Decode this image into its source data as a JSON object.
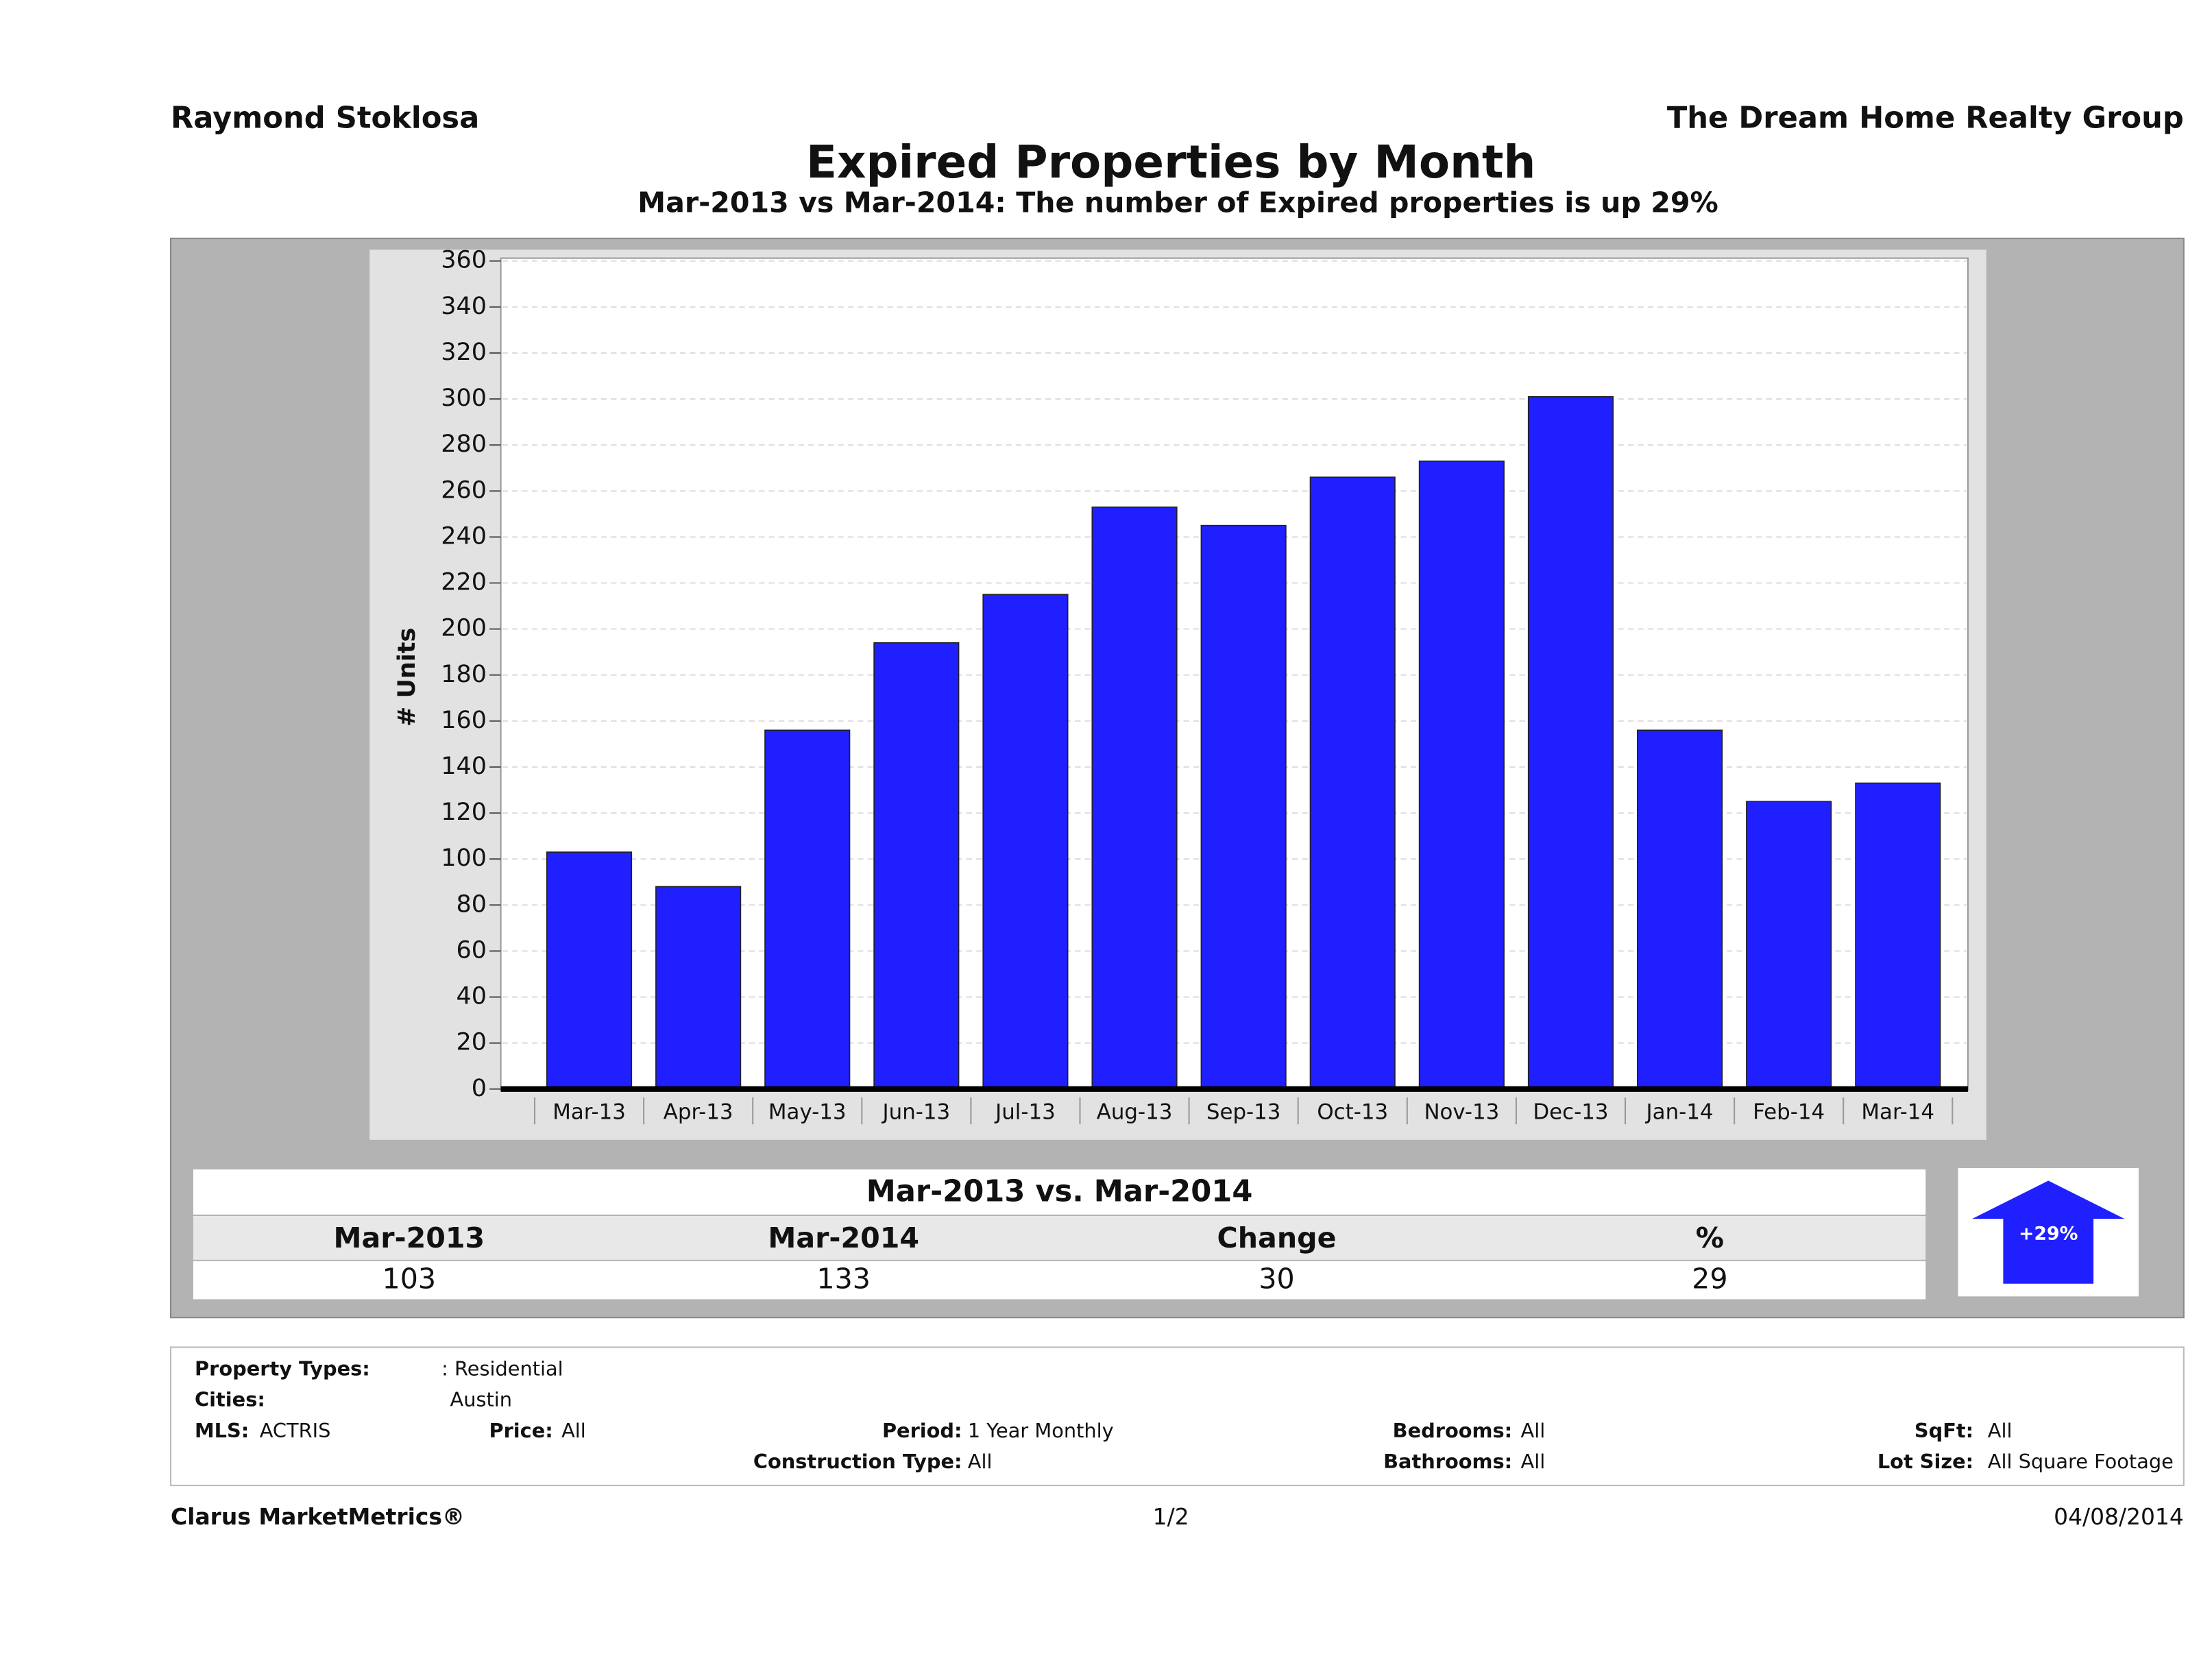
{
  "header": {
    "left": "Raymond Stoklosa",
    "right": "The Dream Home Realty Group"
  },
  "chart_data": {
    "type": "bar",
    "title": "Expired Properties by Month",
    "subtitle": "Mar-2013 vs Mar-2014: The number of Expired  properties is up 29%",
    "y_label": "# Units",
    "categories": [
      "Mar-13",
      "Apr-13",
      "May-13",
      "Jun-13",
      "Jul-13",
      "Aug-13",
      "Sep-13",
      "Oct-13",
      "Nov-13",
      "Dec-13",
      "Jan-14",
      "Feb-14",
      "Mar-14"
    ],
    "values": [
      103,
      88,
      156,
      194,
      215,
      253,
      245,
      266,
      273,
      301,
      156,
      125,
      133
    ],
    "color": "#1f1fff",
    "ylim": [
      0,
      360
    ],
    "yticks": [
      0,
      20,
      40,
      60,
      80,
      100,
      120,
      140,
      160,
      180,
      200,
      220,
      240,
      260,
      280,
      300,
      320,
      340,
      360
    ],
    "grid": true
  },
  "comparison": {
    "title": "Mar-2013 vs. Mar-2014",
    "headers": [
      "Mar-2013",
      "Mar-2014",
      "Change",
      "%"
    ],
    "values": [
      103,
      133,
      30,
      29
    ],
    "badge": "+29%"
  },
  "details": [
    {
      "label": "Property Types:",
      "value": ": Residential"
    },
    {
      "label": "Cities:",
      "value": "Austin"
    },
    {
      "label": "MLS:",
      "value": "ACTRIS"
    },
    {
      "label": "Price:",
      "value": "All"
    },
    {
      "label": "Period:",
      "value": "1 Year Monthly"
    },
    {
      "label": "Construction Type:",
      "value": "All"
    },
    {
      "label": "Bedrooms:",
      "value": "All"
    },
    {
      "label": "Bathrooms:",
      "value": "All"
    },
    {
      "label": "SqFt:",
      "value": "All"
    },
    {
      "label": "Lot Size:",
      "value": "All Square Footage"
    }
  ],
  "footer": {
    "left": "Clarus MarketMetrics®",
    "center": "1/2",
    "right": "04/08/2014"
  }
}
